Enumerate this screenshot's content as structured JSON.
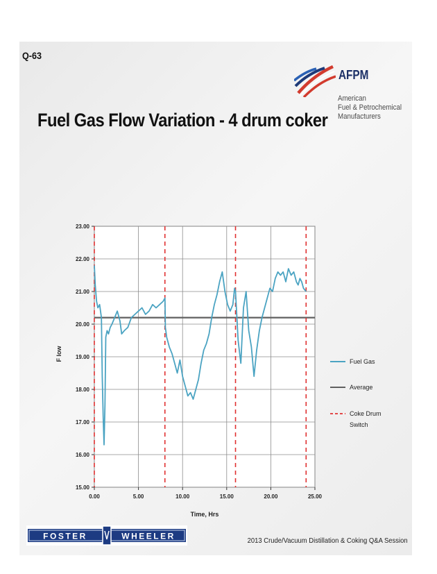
{
  "slide": {
    "id": "Q-63",
    "title": "Fuel Gas Flow Variation - 4 drum coker",
    "footer": "2013 Crude/Vacuum  Distillation & Coking Q&A Session"
  },
  "afpm_logo": {
    "name": "AFPM",
    "line1": "American",
    "line2": "Fuel & Petrochemical",
    "line3": "Manufacturers"
  },
  "foster_wheeler_logo": {
    "text": "FOSTER WHEELER"
  },
  "chart_data": {
    "type": "line",
    "xlabel": "Time, Hrs",
    "ylabel": "F low",
    "xlim": [
      0,
      25
    ],
    "ylim": [
      15,
      23
    ],
    "x_ticks": [
      "0.00",
      "5.00",
      "10.00",
      "15.00",
      "20.00",
      "25.00"
    ],
    "y_ticks": [
      "15.00",
      "16.00",
      "17.00",
      "18.00",
      "19.00",
      "20.00",
      "21.00",
      "22.00",
      "23.00"
    ],
    "grid": true,
    "legend_position": "right",
    "legend": [
      {
        "label": "Fuel Gas"
      },
      {
        "label": "Average"
      },
      {
        "label": "Coke Drum Switch"
      }
    ],
    "colors": {
      "fuel_gas": "#4aa3c2",
      "average": "#5f5f5f",
      "switch": "#e03030"
    },
    "series": [
      {
        "name": "Fuel Gas",
        "x": [
          0,
          0.1,
          0.25,
          0.4,
          0.6,
          0.8,
          0.9,
          1.0,
          1.1,
          1.2,
          1.3,
          1.45,
          1.6,
          1.8,
          2.0,
          2.3,
          2.6,
          2.9,
          3.1,
          3.4,
          3.8,
          4.2,
          4.6,
          5.0,
          5.4,
          5.8,
          6.2,
          6.6,
          7.0,
          7.4,
          7.8,
          8.0,
          8.05,
          8.2,
          8.5,
          8.8,
          9.1,
          9.4,
          9.7,
          10.0,
          10.3,
          10.6,
          10.9,
          11.2,
          11.5,
          11.8,
          12.1,
          12.4,
          12.7,
          13.0,
          13.3,
          13.6,
          13.9,
          14.2,
          14.5,
          14.8,
          15.1,
          15.4,
          15.7,
          15.9,
          16.0,
          16.3,
          16.6,
          16.9,
          17.2,
          17.5,
          17.8,
          18.1,
          18.4,
          18.7,
          19.0,
          19.3,
          19.6,
          19.9,
          20.2,
          20.5,
          20.8,
          21.1,
          21.4,
          21.7,
          22.0,
          22.3,
          22.6,
          22.9,
          23.1,
          23.3,
          23.5,
          23.7,
          24.0
        ],
        "y": [
          21.8,
          21.2,
          20.7,
          20.5,
          20.6,
          20.2,
          18.4,
          17.2,
          16.3,
          17.5,
          19.6,
          19.8,
          19.7,
          19.9,
          20.0,
          20.2,
          20.4,
          20.1,
          19.7,
          19.8,
          19.9,
          20.2,
          20.3,
          20.4,
          20.5,
          20.3,
          20.4,
          20.6,
          20.5,
          20.6,
          20.7,
          20.8,
          19.9,
          19.6,
          19.3,
          19.1,
          18.8,
          18.5,
          18.9,
          18.4,
          18.1,
          17.8,
          17.9,
          17.7,
          18.0,
          18.3,
          18.8,
          19.2,
          19.4,
          19.7,
          20.2,
          20.6,
          20.9,
          21.3,
          21.6,
          21.0,
          20.6,
          20.4,
          20.6,
          21.1,
          21.0,
          19.5,
          18.8,
          20.5,
          21.0,
          19.8,
          19.3,
          18.4,
          19.2,
          19.8,
          20.2,
          20.5,
          20.8,
          21.1,
          21.0,
          21.4,
          21.6,
          21.5,
          21.6,
          21.3,
          21.7,
          21.5,
          21.6,
          21.3,
          21.2,
          21.4,
          21.3,
          21.1,
          21.0
        ]
      },
      {
        "name": "Average",
        "value": 20.2
      },
      {
        "name": "Coke Drum Switch",
        "x": [
          0,
          8,
          16,
          24
        ]
      }
    ]
  }
}
